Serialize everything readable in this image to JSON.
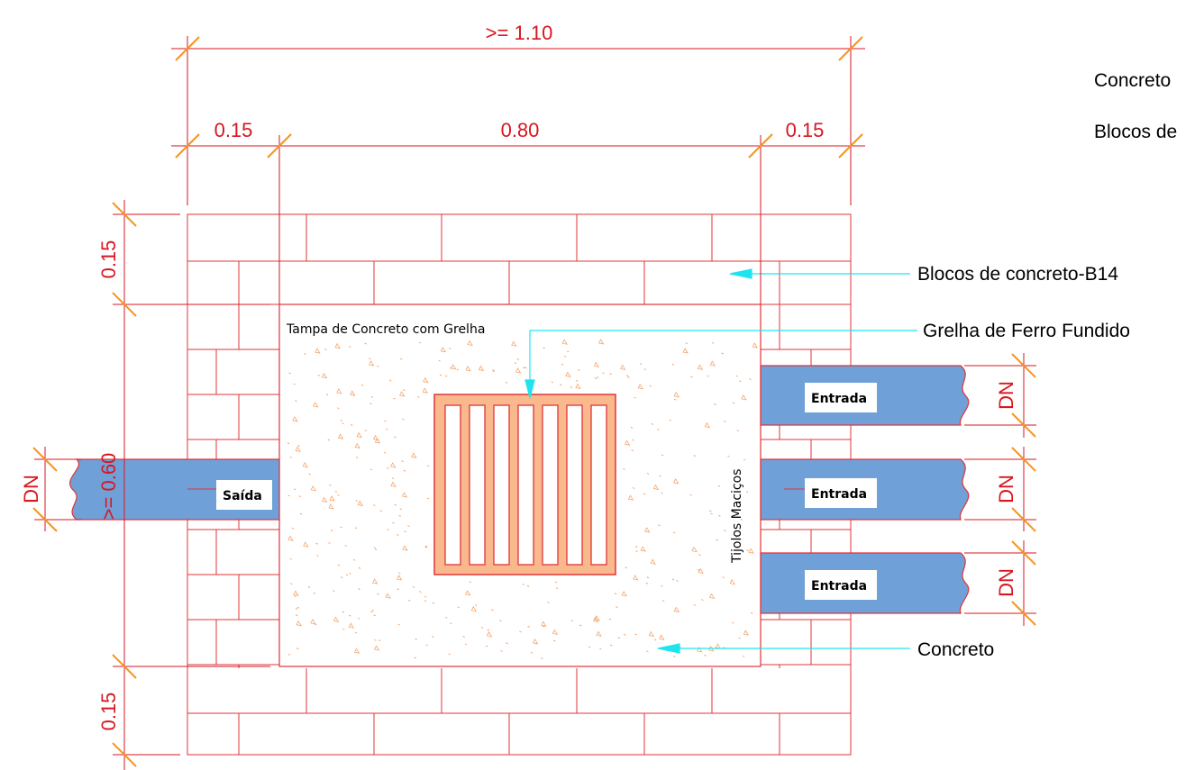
{
  "dimensions": {
    "overall_width": ">= 1.10",
    "left_wall": "0.15",
    "opening": "0.80",
    "right_wall": "0.15",
    "top_wall": "0.15",
    "inner_height": ">= 0.60",
    "bottom_wall": "0.15",
    "pipe_diameter": "DN"
  },
  "legend": {
    "item_1": "Concreto",
    "item_2": "Blocos de"
  },
  "callouts": {
    "blocks": "Blocos de concreto-B14",
    "grate": "Grelha de Ferro Fundido",
    "concrete": "Concreto"
  },
  "labels": {
    "cover": "Tampa de Concreto com Grelha",
    "solid_bricks": "Tijolos Maciços",
    "outlet": "Saída",
    "inlets": [
      "Entrada",
      "Entrada",
      "Entrada"
    ]
  },
  "colors": {
    "dimension": "#d7171f",
    "wall_lines": "#e0343a",
    "tick": "#f7941d",
    "pipe": "#6fa0d8",
    "leader": "#1fe4f0",
    "grate": "#f9b98c",
    "concrete_speckle": "#f39a5a"
  }
}
